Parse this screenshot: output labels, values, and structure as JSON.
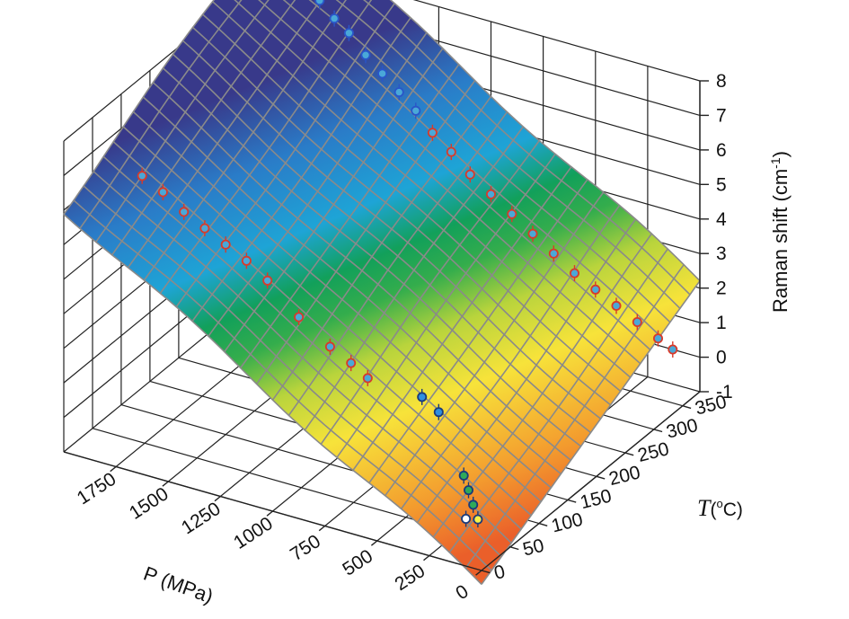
{
  "chart_data": {
    "type": "surface3d",
    "title": "",
    "z_axis": {
      "label_main": "Raman shift (cm",
      "label_sup": "-1",
      "label_close": ")",
      "ticks": [
        "8",
        "7",
        "6",
        "5",
        "4",
        "3",
        "2",
        "1",
        "0",
        "-1"
      ],
      "range": [
        -1,
        8
      ]
    },
    "x_axis": {
      "label": "P (MPa)",
      "ticks": [
        "1750",
        "1500",
        "1250",
        "1000",
        "750",
        "500",
        "250",
        "0"
      ],
      "range": [
        0,
        2000
      ]
    },
    "y_axis": {
      "label_var": "T",
      "label_unit_open": "(",
      "label_unit_sup": "o",
      "label_unit_close": "C)",
      "ticks": [
        "350",
        "300",
        "250",
        "200",
        "150",
        "100",
        "50",
        "0"
      ],
      "range": [
        0,
        380
      ]
    },
    "surface": {
      "description_colors": [
        "#e9652b",
        "#f4a030",
        "#f6e43a",
        "#a6cf3c",
        "#1aa24a",
        "#1ea0d0",
        "#2560b0",
        "#3a3e8a"
      ],
      "mesh_color": "#8a8a8a",
      "approx_plane": "z ≈ 0.0037·P + 0.0095·T − 1.4"
    },
    "series": [
      {
        "marker_style": "open circle, blue edge",
        "edge_color": "#2a55c8",
        "fill_color": "#4aa8d8",
        "points": [
          {
            "P": 1900,
            "T": 380,
            "z": 7.5
          },
          {
            "P": 1820,
            "T": 380,
            "z": 7.2
          },
          {
            "P": 1750,
            "T": 380,
            "z": 6.8
          },
          {
            "P": 1680,
            "T": 380,
            "z": 6.5
          },
          {
            "P": 1600,
            "T": 380,
            "z": 6.0
          },
          {
            "P": 1520,
            "T": 380,
            "z": 5.6
          },
          {
            "P": 1440,
            "T": 380,
            "z": 5.2
          },
          {
            "P": 1360,
            "T": 380,
            "z": 4.8
          }
        ]
      },
      {
        "marker_style": "open circle, red edge",
        "edge_color": "#d83a2a",
        "fill_color": "#4aa8d8",
        "points": [
          {
            "P": 1280,
            "T": 380,
            "z": 4.3
          },
          {
            "P": 1190,
            "T": 380,
            "z": 3.9
          },
          {
            "P": 1100,
            "T": 380,
            "z": 3.4
          },
          {
            "P": 1000,
            "T": 380,
            "z": 3.0
          },
          {
            "P": 900,
            "T": 380,
            "z": 2.6
          },
          {
            "P": 800,
            "T": 380,
            "z": 2.2
          },
          {
            "P": 700,
            "T": 380,
            "z": 1.8
          },
          {
            "P": 600,
            "T": 380,
            "z": 1.4
          },
          {
            "P": 500,
            "T": 380,
            "z": 1.1
          },
          {
            "P": 400,
            "T": 380,
            "z": 0.8
          },
          {
            "P": 300,
            "T": 380,
            "z": 0.5
          },
          {
            "P": 200,
            "T": 380,
            "z": 0.2
          },
          {
            "P": 130,
            "T": 380,
            "z": 0.0
          }
        ]
      },
      {
        "marker_style": "open circle, red edge",
        "edge_color": "#d83a2a",
        "fill_color": "#4aa8d8",
        "points": [
          {
            "P": 1900,
            "T": 100,
            "z": 5.8
          },
          {
            "P": 1800,
            "T": 100,
            "z": 5.5
          },
          {
            "P": 1700,
            "T": 100,
            "z": 5.1
          },
          {
            "P": 1600,
            "T": 100,
            "z": 4.8
          },
          {
            "P": 1500,
            "T": 100,
            "z": 4.5
          },
          {
            "P": 1400,
            "T": 100,
            "z": 4.2
          },
          {
            "P": 1300,
            "T": 100,
            "z": 3.8
          },
          {
            "P": 1150,
            "T": 100,
            "z": 3.0
          },
          {
            "P": 1000,
            "T": 100,
            "z": 2.4
          },
          {
            "P": 900,
            "T": 100,
            "z": 2.1
          },
          {
            "P": 820,
            "T": 100,
            "z": 1.8
          }
        ]
      },
      {
        "marker_style": "filled circle, blue",
        "edge_color": "#1a3a7a",
        "fill_color": "#2f8fe0",
        "points": [
          {
            "P": 560,
            "T": 100,
            "z": 1.7
          },
          {
            "P": 480,
            "T": 100,
            "z": 1.4
          }
        ]
      },
      {
        "marker_style": "filled circle, green",
        "edge_color": "#1a3a7a",
        "fill_color": "#2eaa5a",
        "points": [
          {
            "P": 1950,
            "T": 380,
            "z": 7.8
          },
          {
            "P": 200,
            "T": 50,
            "z": 0.3
          },
          {
            "P": 150,
            "T": 40,
            "z": 0.1
          },
          {
            "P": 250,
            "T": 60,
            "z": 0.5
          }
        ]
      },
      {
        "marker_style": "filled circle, yellow",
        "edge_color": "#1a3a7a",
        "fill_color": "#f6f24a",
        "points": [
          {
            "P": 100,
            "T": 30,
            "z": -0.1
          }
        ]
      },
      {
        "marker_style": "filled circle, white",
        "edge_color": "#1a3a7a",
        "fill_color": "#ffffff",
        "points": [
          {
            "P": 130,
            "T": 20,
            "z": 0.0
          }
        ]
      }
    ]
  }
}
